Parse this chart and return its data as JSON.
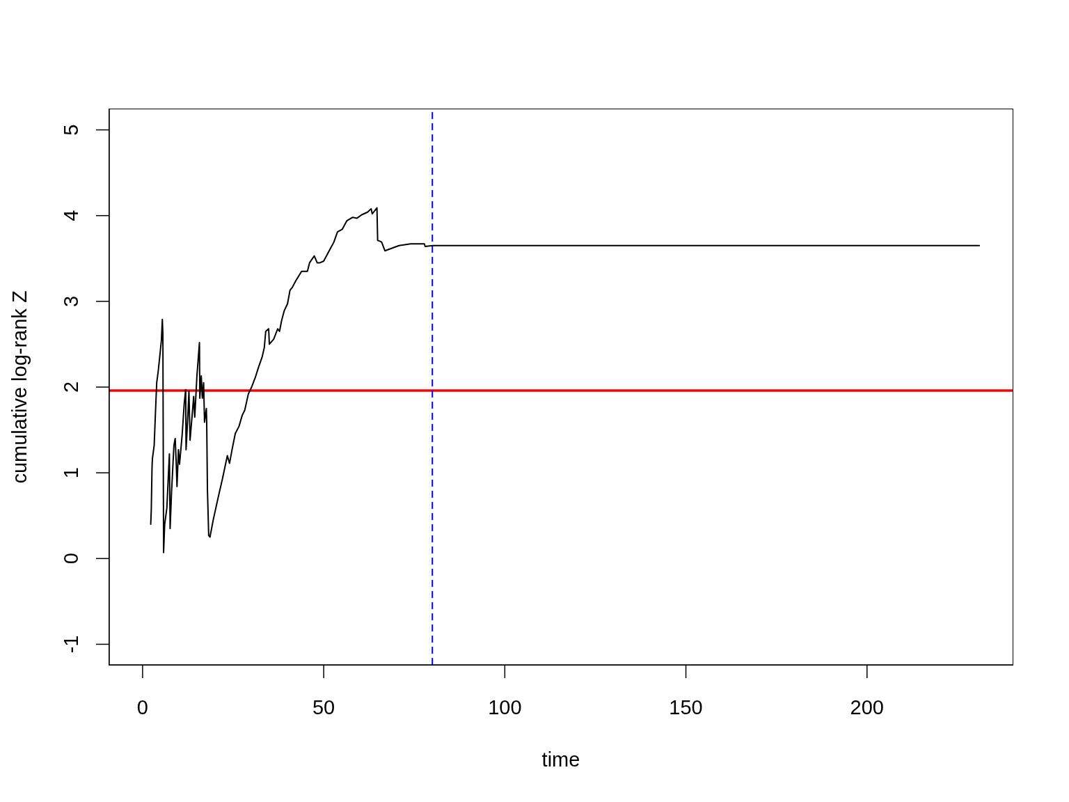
{
  "chart_data": {
    "type": "line",
    "xlabel": "time",
    "ylabel": "cumulative log-rank Z",
    "x": [
      2.25,
      2.4,
      2.6,
      2.7,
      3.2,
      3.6,
      3.9,
      4.3,
      4.8,
      5.2,
      5.45,
      5.6,
      5.8,
      6.1,
      6.7,
      7.4,
      7.6,
      8.0,
      8.65,
      9.0,
      9.3,
      9.5,
      9.9,
      10.2,
      10.9,
      11.5,
      11.9,
      12.0,
      12.5,
      12.8,
      13.1,
      13.8,
      14.1,
      14.4,
      15.0,
      15.7,
      15.8,
      16.2,
      16.5,
      16.85,
      17.1,
      17.6,
      17.7,
      17.9,
      18.25,
      18.6,
      19.5,
      20.8,
      22.1,
      23.4,
      24.0,
      24.7,
      25.6,
      26.6,
      27.5,
      28.2,
      29.2,
      30.1,
      31.1,
      32.0,
      33.0,
      33.6,
      34.0,
      34.8,
      35.0,
      36.2,
      37.3,
      37.8,
      38.4,
      39.1,
      40.0,
      40.7,
      41.3,
      42.3,
      43.9,
      45.5,
      46.1,
      47.4,
      48.2,
      49.0,
      50.0,
      50.9,
      51.9,
      52.8,
      53.8,
      55.1,
      56.4,
      58.0,
      59.2,
      60.5,
      62.1,
      63.1,
      63.4,
      64.7,
      64.9,
      65.6,
      66.0,
      66.9,
      68.2,
      70.8,
      74.0,
      77.8,
      78.0,
      80.1,
      100,
      231
    ],
    "series": [
      {
        "color": "#000000",
        "values": [
          0.4,
          0.57,
          1.05,
          1.16,
          1.32,
          1.75,
          2.05,
          2.18,
          2.38,
          2.55,
          2.79,
          2.62,
          0.07,
          0.4,
          0.59,
          1.22,
          0.35,
          0.78,
          1.32,
          1.4,
          1.1,
          0.84,
          1.27,
          1.1,
          1.43,
          1.81,
          1.97,
          1.27,
          1.67,
          1.95,
          1.38,
          1.73,
          1.89,
          1.65,
          2.13,
          2.52,
          1.87,
          2.13,
          1.87,
          2.05,
          1.59,
          1.75,
          1.59,
          0.81,
          0.27,
          0.25,
          0.45,
          0.7,
          0.94,
          1.2,
          1.11,
          1.27,
          1.46,
          1.54,
          1.67,
          1.73,
          1.92,
          2.0,
          2.11,
          2.23,
          2.35,
          2.46,
          2.65,
          2.68,
          2.5,
          2.56,
          2.68,
          2.65,
          2.78,
          2.89,
          2.97,
          3.13,
          3.16,
          3.24,
          3.35,
          3.35,
          3.45,
          3.53,
          3.45,
          3.45,
          3.47,
          3.54,
          3.62,
          3.69,
          3.81,
          3.84,
          3.94,
          3.98,
          3.97,
          4.01,
          4.04,
          4.08,
          4.02,
          4.09,
          3.71,
          3.7,
          3.69,
          3.59,
          3.61,
          3.65,
          3.67,
          3.67,
          3.64,
          3.65,
          3.65,
          3.65
        ]
      }
    ],
    "xlim": [
      -9.2,
      240.2
    ],
    "xticks": [
      0,
      50,
      100,
      150,
      200
    ],
    "ylim": [
      -1.24,
      5.24
    ],
    "yticks": [
      -1,
      0,
      1,
      2,
      3,
      4,
      5
    ],
    "ref_lines": [
      {
        "axis": "y",
        "value": 1.96,
        "color": "#ff0000"
      },
      {
        "axis": "x",
        "value": 80,
        "color": "#0000ff",
        "line_style": "dashed"
      }
    ]
  }
}
